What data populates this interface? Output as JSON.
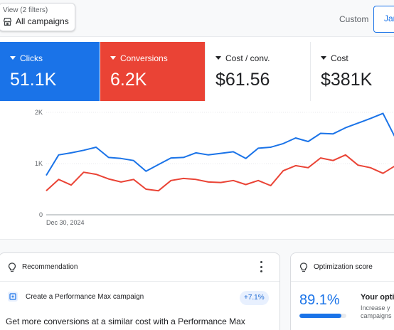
{
  "view": {
    "caption": "View (2 filters)",
    "value": "All campaigns",
    "icon": "store-icon"
  },
  "date": {
    "preset": "Custom",
    "range_start": "Jan"
  },
  "metrics": [
    {
      "name": "Clicks",
      "value": "51.1K",
      "color": "#1a73e8"
    },
    {
      "name": "Conversions",
      "value": "6.2K",
      "color": "#ea4335"
    },
    {
      "name": "Cost / conv.",
      "value": "$61.56"
    },
    {
      "name": "Cost",
      "value": "$381K"
    }
  ],
  "chart_data": {
    "type": "line",
    "x_start_label": "Dec 30, 2024",
    "y_ticks": [
      "0",
      "1K",
      "2K"
    ],
    "ylim": [
      0,
      2000
    ],
    "series": [
      {
        "name": "Clicks",
        "color": "#1a73e8",
        "values": [
          770,
          1170,
          1210,
          1260,
          1320,
          1120,
          1100,
          1060,
          850,
          980,
          1110,
          1120,
          1210,
          1170,
          1200,
          1230,
          1100,
          1300,
          1320,
          1390,
          1500,
          1430,
          1590,
          1580,
          1700,
          1790,
          1880,
          1980,
          1500
        ]
      },
      {
        "name": "Conversions",
        "color": "#ea4335",
        "values": [
          470,
          690,
          580,
          830,
          790,
          700,
          640,
          690,
          500,
          470,
          670,
          710,
          690,
          640,
          630,
          670,
          590,
          670,
          570,
          860,
          960,
          920,
          1110,
          1060,
          1170,
          970,
          920,
          810,
          960
        ]
      }
    ]
  },
  "recommendation": {
    "header": "Recommendation",
    "item": "Create a Performance Max campaign",
    "badge": "+7.1%",
    "text": "Get more conversions at a similar cost with a Performance Max campaign. It uses Google AI to show ads across Search, YouTube"
  },
  "optimization": {
    "header": "Optimization score",
    "value": "89.1%",
    "level": 0.891,
    "title": "Your opti",
    "subtitle": "Increase y campaigns"
  }
}
